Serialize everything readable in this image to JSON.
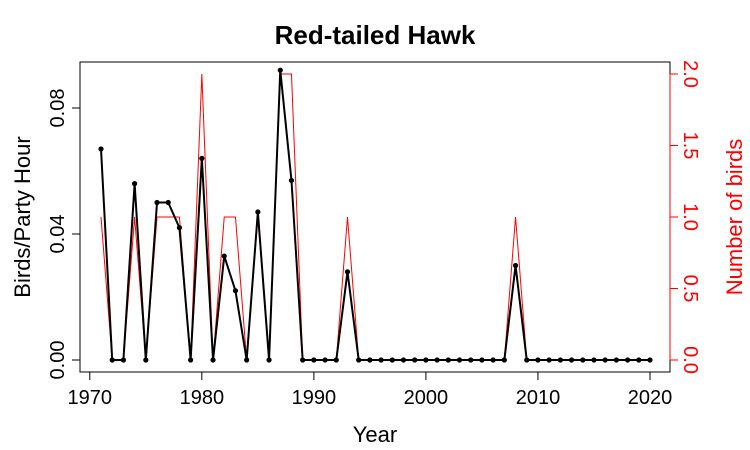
{
  "chart_data": {
    "type": "line",
    "title": "Red-tailed Hawk",
    "xlabel": "Year",
    "ylabel": "Birds/Party Hour",
    "y2label": "Number of birds",
    "xlim": [
      1970,
      2020
    ],
    "ylim": [
      0,
      0.092
    ],
    "y2lim": [
      0,
      2.0
    ],
    "xticks": [
      1970,
      1980,
      1990,
      2000,
      2010,
      2020
    ],
    "yticks": [
      0,
      0.04,
      0.08
    ],
    "ytick_labels": [
      "0.00",
      "0.04",
      "0.08"
    ],
    "y2ticks": [
      0,
      0.5,
      1.0,
      1.5,
      2.0
    ],
    "y2tick_labels": [
      "0.0",
      "0.5",
      "1.0",
      "1.5",
      "2.0"
    ],
    "grid": false,
    "x": [
      1971,
      1972,
      1973,
      1974,
      1975,
      1976,
      1977,
      1978,
      1979,
      1980,
      1981,
      1982,
      1983,
      1984,
      1985,
      1986,
      1987,
      1988,
      1989,
      1990,
      1991,
      1992,
      1993,
      1994,
      1995,
      1996,
      1997,
      1998,
      1999,
      2000,
      2001,
      2002,
      2003,
      2004,
      2005,
      2006,
      2007,
      2008,
      2009,
      2010,
      2011,
      2012,
      2013,
      2014,
      2015,
      2016,
      2017,
      2018,
      2019,
      2020
    ],
    "series": [
      {
        "axis": "left",
        "style": "line-points",
        "color": "#000000",
        "values": [
          0.067,
          0,
          0,
          0.056,
          0,
          0.05,
          0.05,
          0.042,
          0,
          0.064,
          0,
          0.033,
          0.022,
          0,
          0.047,
          0,
          0.092,
          0.057,
          0,
          0,
          0,
          0,
          0.028,
          0,
          0,
          0,
          0,
          0,
          0,
          0,
          0,
          0,
          0,
          0,
          0,
          0,
          0,
          0.03,
          0,
          0,
          0,
          0,
          0,
          0,
          0,
          0,
          0,
          0,
          0,
          0
        ]
      },
      {
        "axis": "right",
        "style": "step",
        "color": "#ff0000",
        "values": [
          1,
          0,
          0,
          1,
          0,
          1,
          1,
          1,
          0,
          2,
          0,
          1,
          1,
          0,
          1,
          0,
          2,
          2,
          0,
          0,
          0,
          0,
          1,
          0,
          0,
          0,
          0,
          0,
          0,
          0,
          0,
          0,
          0,
          0,
          0,
          0,
          0,
          1,
          0,
          0,
          0,
          0,
          0,
          0,
          0,
          0,
          0,
          0,
          0,
          0
        ]
      }
    ]
  }
}
